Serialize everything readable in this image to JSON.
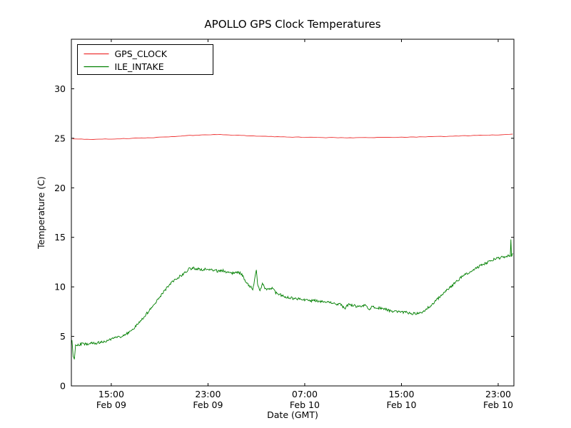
{
  "title": "APOLLO GPS Clock Temperatures",
  "chart_data": {
    "type": "line",
    "title": "APOLLO GPS Clock Temperatures",
    "xlabel": "Date (GMT)",
    "ylabel": "Temperature (C)",
    "x_unit": "hours since Feb 09 00:00 GMT",
    "xlim": [
      11.7,
      48.3
    ],
    "ylim": [
      0,
      35
    ],
    "grid": false,
    "legend_position": "upper left",
    "yticks": [
      0,
      5,
      10,
      15,
      20,
      25,
      30
    ],
    "xticks": [
      {
        "value": 15,
        "time": "15:00",
        "date": "Feb 09"
      },
      {
        "value": 23,
        "time": "23:00",
        "date": "Feb 09"
      },
      {
        "value": 31,
        "time": "07:00",
        "date": "Feb 10"
      },
      {
        "value": 39,
        "time": "15:00",
        "date": "Feb 10"
      },
      {
        "value": 47,
        "time": "23:00",
        "date": "Feb 10"
      }
    ],
    "series": [
      {
        "name": "GPS_CLOCK",
        "color": "#ee3333",
        "noise": 0.025,
        "points": [
          [
            11.8,
            24.92
          ],
          [
            13,
            24.9
          ],
          [
            15,
            24.93
          ],
          [
            17,
            25.0
          ],
          [
            19,
            25.1
          ],
          [
            21,
            25.25
          ],
          [
            22.5,
            25.35
          ],
          [
            24,
            25.38
          ],
          [
            25.5,
            25.3
          ],
          [
            27,
            25.22
          ],
          [
            29,
            25.15
          ],
          [
            31,
            25.1
          ],
          [
            33,
            25.07
          ],
          [
            35,
            25.05
          ],
          [
            37,
            25.08
          ],
          [
            39,
            25.1
          ],
          [
            41,
            25.15
          ],
          [
            43,
            25.2
          ],
          [
            45,
            25.28
          ],
          [
            47,
            25.33
          ],
          [
            48.2,
            25.42
          ]
        ]
      },
      {
        "name": "ILE_INTAKE",
        "color": "#007f00",
        "noise": 0.13,
        "points": [
          [
            11.75,
            4.6
          ],
          [
            11.85,
            3.0
          ],
          [
            11.95,
            2.6
          ],
          [
            12.05,
            4.2
          ],
          [
            12.3,
            4.1
          ],
          [
            12.6,
            4.3
          ],
          [
            13.0,
            4.2
          ],
          [
            13.4,
            4.35
          ],
          [
            13.8,
            4.3
          ],
          [
            14.2,
            4.45
          ],
          [
            14.6,
            4.5
          ],
          [
            15.0,
            4.7
          ],
          [
            15.4,
            4.85
          ],
          [
            15.8,
            5.0
          ],
          [
            16.2,
            5.2
          ],
          [
            16.6,
            5.5
          ],
          [
            17.0,
            6.0
          ],
          [
            17.4,
            6.5
          ],
          [
            17.8,
            7.1
          ],
          [
            18.2,
            7.7
          ],
          [
            18.6,
            8.3
          ],
          [
            19.0,
            9.0
          ],
          [
            19.4,
            9.6
          ],
          [
            19.8,
            10.2
          ],
          [
            20.2,
            10.7
          ],
          [
            20.6,
            11.0
          ],
          [
            21.0,
            11.3
          ],
          [
            21.4,
            11.8
          ],
          [
            21.8,
            11.9
          ],
          [
            22.2,
            11.8
          ],
          [
            22.6,
            11.75
          ],
          [
            23.0,
            11.8
          ],
          [
            23.4,
            11.7
          ],
          [
            23.8,
            11.6
          ],
          [
            24.2,
            11.65
          ],
          [
            24.6,
            11.5
          ],
          [
            25.0,
            11.4
          ],
          [
            25.4,
            11.5
          ],
          [
            25.8,
            11.3
          ],
          [
            26.1,
            10.6
          ],
          [
            26.4,
            10.1
          ],
          [
            26.7,
            9.8
          ],
          [
            26.9,
            11.0
          ],
          [
            27.0,
            11.8
          ],
          [
            27.1,
            10.3
          ],
          [
            27.3,
            9.6
          ],
          [
            27.5,
            10.4
          ],
          [
            27.7,
            9.9
          ],
          [
            28.0,
            9.7
          ],
          [
            28.3,
            9.9
          ],
          [
            28.6,
            9.4
          ],
          [
            29.0,
            9.2
          ],
          [
            29.4,
            9.0
          ],
          [
            29.8,
            8.9
          ],
          [
            30.2,
            8.8
          ],
          [
            30.6,
            8.8
          ],
          [
            31.0,
            8.7
          ],
          [
            31.5,
            8.6
          ],
          [
            32.0,
            8.6
          ],
          [
            32.5,
            8.5
          ],
          [
            33.0,
            8.5
          ],
          [
            33.5,
            8.3
          ],
          [
            34.0,
            8.2
          ],
          [
            34.3,
            7.8
          ],
          [
            34.6,
            8.2
          ],
          [
            35.0,
            8.1
          ],
          [
            35.5,
            8.0
          ],
          [
            36.0,
            8.1
          ],
          [
            36.3,
            7.7
          ],
          [
            36.6,
            8.0
          ],
          [
            37.0,
            7.9
          ],
          [
            37.5,
            7.8
          ],
          [
            38.0,
            7.6
          ],
          [
            38.5,
            7.5
          ],
          [
            39.0,
            7.45
          ],
          [
            39.5,
            7.4
          ],
          [
            40.0,
            7.3
          ],
          [
            40.4,
            7.35
          ],
          [
            40.8,
            7.5
          ],
          [
            41.2,
            7.9
          ],
          [
            41.6,
            8.3
          ],
          [
            42.0,
            8.8
          ],
          [
            42.5,
            9.4
          ],
          [
            43.0,
            9.9
          ],
          [
            43.5,
            10.5
          ],
          [
            44.0,
            11.0
          ],
          [
            44.5,
            11.4
          ],
          [
            45.0,
            11.8
          ],
          [
            45.5,
            12.1
          ],
          [
            46.0,
            12.4
          ],
          [
            46.5,
            12.7
          ],
          [
            47.0,
            12.9
          ],
          [
            47.4,
            13.0
          ],
          [
            47.8,
            13.1
          ],
          [
            48.0,
            13.2
          ],
          [
            48.05,
            14.9
          ],
          [
            48.1,
            13.0
          ],
          [
            48.2,
            13.4
          ]
        ]
      }
    ]
  }
}
